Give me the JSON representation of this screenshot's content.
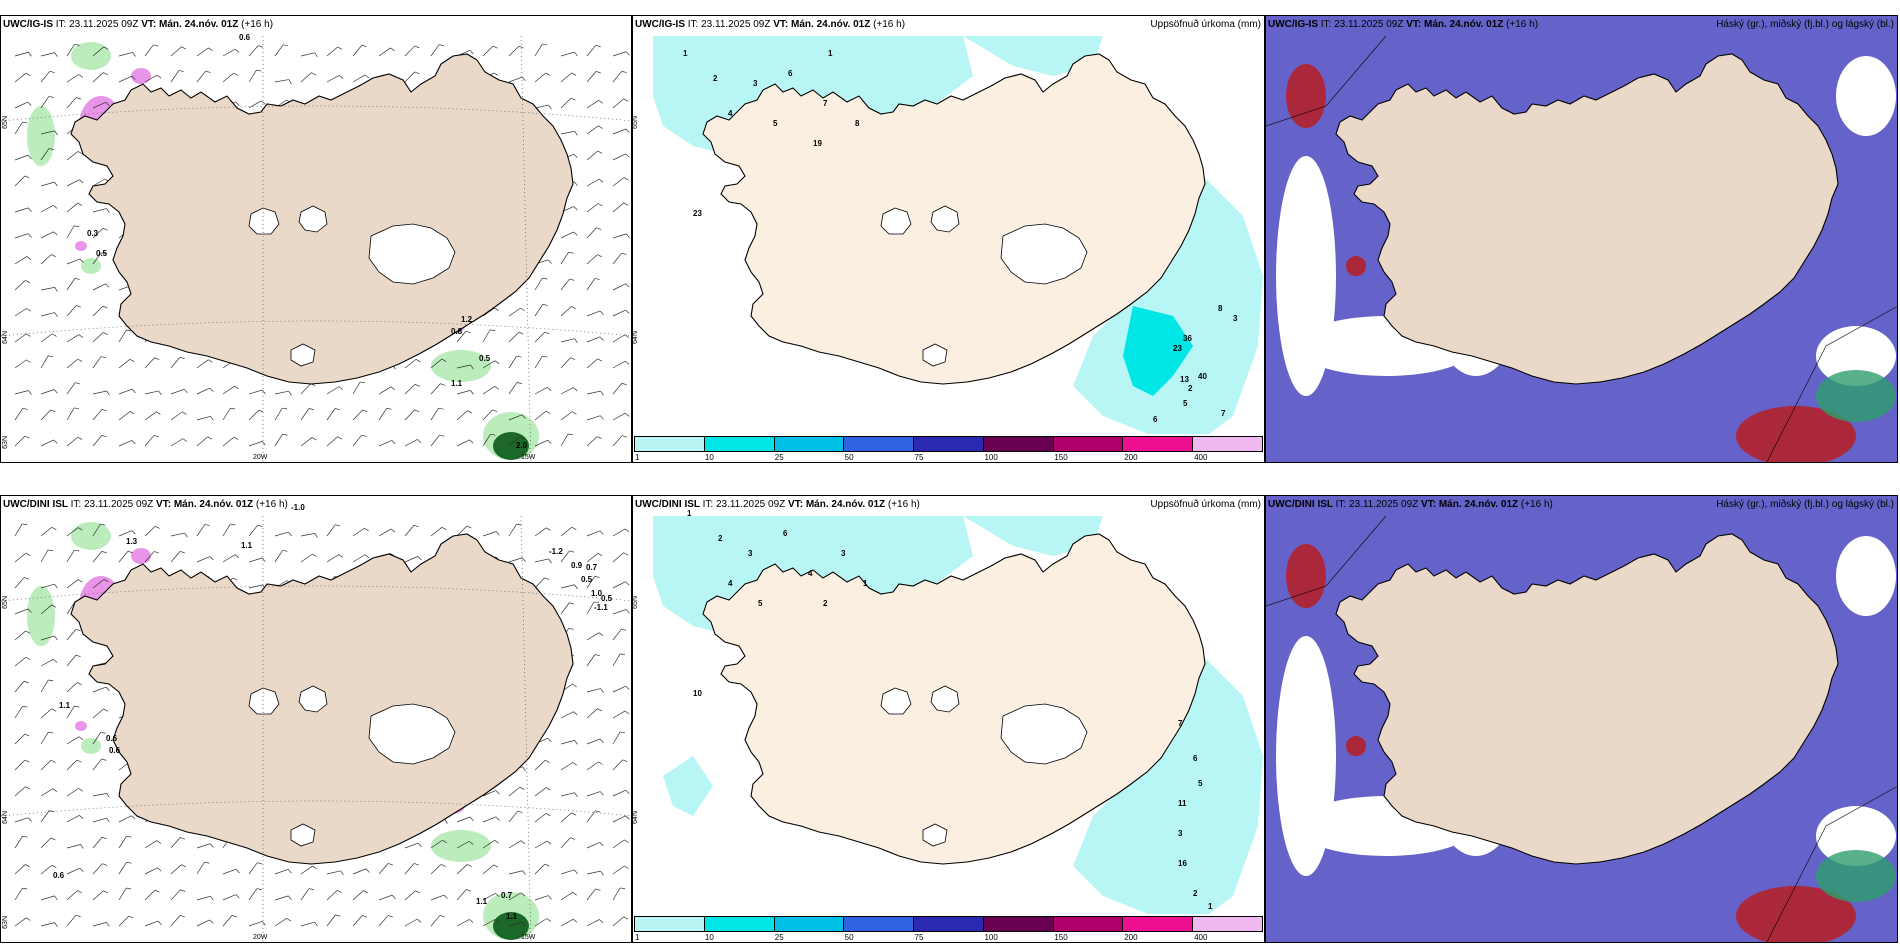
{
  "colors": {
    "land": "#ead9c9",
    "land_precip": "#fbefe2",
    "glacier": "#ffffff",
    "precip_light": "#b0f5f5",
    "precip_mid": "#00e5e5",
    "cloud_high": "#b2202a",
    "cloud_mid": "#2e9e6e",
    "cloud_low": "#4a48c0",
    "wind_green": "#8ee08e",
    "wind_magenta": "#e070e0"
  },
  "panels": [
    {
      "model": "UWC/IG-IS",
      "init_label": "IT:",
      "init": "23.11.2025 09Z",
      "valid_label": "VT:",
      "valid": "Mán. 24.nóv. 01Z",
      "lead": "(+16 h)",
      "field": "",
      "type": "wind",
      "lat_labels": [
        "65N",
        "64N",
        "63N"
      ],
      "lon_labels": [
        "20W",
        "15W"
      ],
      "values": [
        "0.6",
        "0.3",
        "0.5",
        "0.8",
        "1.2",
        "0.5",
        "1.1",
        "2.0"
      ]
    },
    {
      "model": "UWC/IG-IS",
      "init_label": "IT:",
      "init": "23.11.2025 09Z",
      "valid_label": "VT:",
      "valid": "Mán. 24.nóv. 01Z",
      "lead": "(+16 h)",
      "field": "Uppsöfnuð úrkoma (mm)",
      "type": "precip",
      "lat_labels": [
        "65N",
        "64N"
      ],
      "values": [
        "1",
        "2",
        "3",
        "4",
        "5",
        "6",
        "7",
        "8",
        "1",
        "19",
        "23",
        "36",
        "23",
        "13",
        "40",
        "5",
        "6",
        "8",
        "3",
        "2",
        "7"
      ]
    },
    {
      "model": "UWC/IG-IS",
      "init_label": "IT:",
      "init": "23.11.2025 09Z",
      "valid_label": "VT:",
      "valid": "Mán. 24.nóv. 01Z",
      "lead": "(+16 h)",
      "field": "Háský (gr.), miðský (fj.bl.) og lágský (bl.)",
      "type": "cloud"
    },
    {
      "model": "UWC/DINI ISL",
      "init_label": "IT:",
      "init": "23.11.2025 09Z",
      "valid_label": "VT:",
      "valid": "Mán. 24.nóv. 01Z",
      "lead": "(+16 h)",
      "field": "",
      "type": "wind",
      "lat_labels": [
        "65N",
        "64N",
        "63N"
      ],
      "lon_labels": [
        "20W",
        "15W"
      ],
      "values": [
        "-1.0",
        "1.3",
        "1.1",
        "-1.2",
        "0.9",
        "0.7",
        "0.5",
        "1.0",
        "0.5",
        "-1.1",
        "1.1",
        "0.6",
        "0.6",
        "0.6",
        "1.1",
        "0.7",
        "1.1"
      ]
    },
    {
      "model": "UWC/DINI ISL",
      "init_label": "IT:",
      "init": "23.11.2025 09Z",
      "valid_label": "VT:",
      "valid": "Mán. 24.nóv. 01Z",
      "lead": "(+16 h)",
      "field": "Uppsöfnuð úrkoma (mm)",
      "type": "precip",
      "lat_labels": [
        "65N",
        "64N"
      ],
      "values": [
        "1",
        "2",
        "3",
        "4",
        "5",
        "6",
        "4",
        "3",
        "1",
        "2",
        "10",
        "7",
        "6",
        "5",
        "11",
        "3",
        "16",
        "2",
        "1"
      ]
    },
    {
      "model": "UWC/DINI ISL",
      "init_label": "IT:",
      "init": "23.11.2025 09Z",
      "valid_label": "VT:",
      "valid": "Mán. 24.nóv. 01Z",
      "lead": "(+16 h)",
      "field": "Háský (gr.), miðský (fj.bl.) og lágský (bl.)",
      "type": "cloud"
    }
  ],
  "colorbar": {
    "ticks": [
      "1",
      "10",
      "25",
      "50",
      "75",
      "100",
      "150",
      "200",
      "400"
    ],
    "colors": [
      "#b8f4f4",
      "#00e6e6",
      "#00bfe6",
      "#2f63e0",
      "#2a2ab0",
      "#6a0050",
      "#b0006e",
      "#ee1090",
      "#f0b8f0"
    ]
  }
}
